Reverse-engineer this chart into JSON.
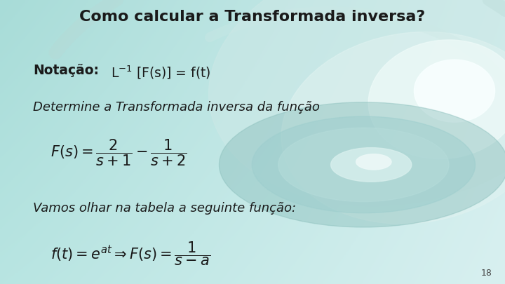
{
  "title": "Como calcular a Transformada inversa?",
  "notation_bold": "Notação:",
  "notation_rest": " L$^{-1}$ [F(s)] = f(t)",
  "determine_text": "Determine a Transformada inversa da função",
  "vamos_text": "Vamos olhar na tabela a seguinte função:",
  "page_number": "18",
  "bg_tl": [
    0.659,
    0.863,
    0.847
  ],
  "bg_tr": [
    0.816,
    0.929,
    0.929
  ],
  "bg_bl": [
    0.722,
    0.898,
    0.886
  ],
  "bg_br": [
    0.847,
    0.941,
    0.941
  ],
  "title_color": "#1a1a1a",
  "text_color": "#1a1a1a",
  "figsize": [
    7.2,
    4.05
  ],
  "dpi": 100
}
